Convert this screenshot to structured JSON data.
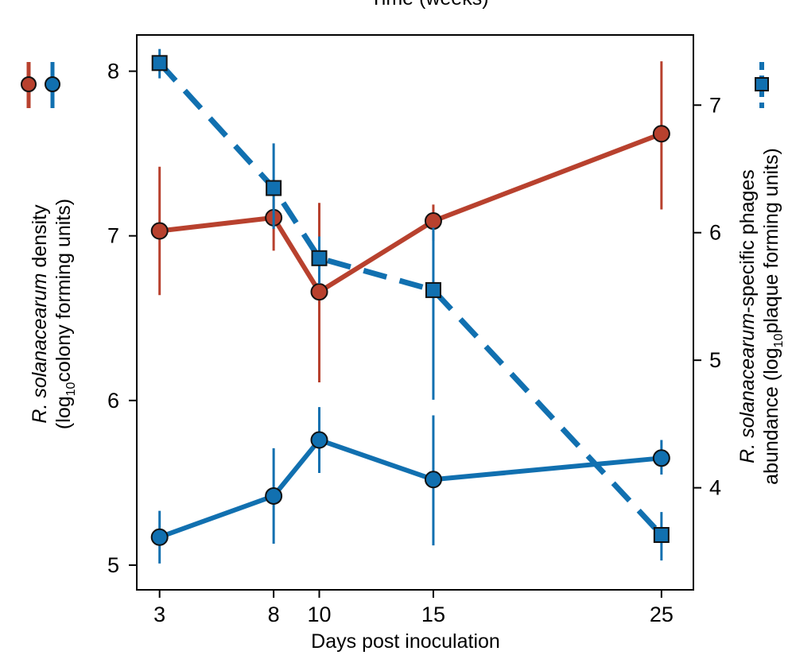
{
  "top_label": "Time (weeks)",
  "chart_data": {
    "type": "line",
    "xlabel": "Days post inoculation",
    "x": [
      3,
      8,
      10,
      15,
      25
    ],
    "x_ticks": [
      "3",
      "8",
      "10",
      "15",
      "25"
    ],
    "xlim": [
      2,
      26.4
    ],
    "y_left": {
      "range": [
        4.85,
        8.22
      ],
      "ticks": [
        "5",
        "6",
        "7",
        "8"
      ],
      "label_line1_italic": "R. solanacearum",
      "label_line1_rest": " density",
      "label_line2_pre": "(log",
      "label_line2_sub": "10",
      "label_line2_post": "colony forming units)"
    },
    "y_right": {
      "range": [
        3.2,
        7.55
      ],
      "ticks": [
        "4",
        "5",
        "6",
        "7"
      ],
      "label_line1_italic": "R. solanacearum",
      "label_line1_rest": "-specific phages",
      "label_line2_pre": "abundance (log",
      "label_line2_sub": "10",
      "label_line2_post": "plaque forming units)"
    },
    "series": [
      {
        "name": "R. solanacearum density (red)",
        "axis": "left",
        "color": "#b8412e",
        "marker": "circle",
        "dash": false,
        "values": [
          7.03,
          7.11,
          6.66,
          7.09,
          7.62
        ],
        "err_low": [
          6.64,
          6.91,
          6.11,
          6.97,
          7.16
        ],
        "err_high": [
          7.42,
          7.22,
          7.2,
          7.19,
          8.06
        ]
      },
      {
        "name": "R. solanacearum density (blue)",
        "axis": "left",
        "color": "#1170b0",
        "marker": "circle",
        "dash": false,
        "values": [
          5.17,
          5.42,
          5.76,
          5.52,
          5.65
        ],
        "err_low": [
          5.01,
          5.13,
          5.56,
          5.12,
          5.55
        ],
        "err_high": [
          5.33,
          5.71,
          5.96,
          5.91,
          5.76
        ]
      },
      {
        "name": "R. solanacearum-specific phages (blue dashed)",
        "axis": "right",
        "color": "#1170b0",
        "marker": "square",
        "dash": true,
        "values": [
          7.33,
          6.35,
          5.8,
          5.55,
          3.63
        ],
        "err_low": [
          7.21,
          6.03,
          5.6,
          4.69,
          3.43
        ],
        "err_high": [
          7.44,
          6.7,
          5.97,
          6.04,
          3.81
        ]
      }
    ]
  },
  "legend": {
    "left_symbols": [
      "red-circle-line",
      "blue-circle-line"
    ],
    "right_symbol": "blue-square-dashed"
  }
}
